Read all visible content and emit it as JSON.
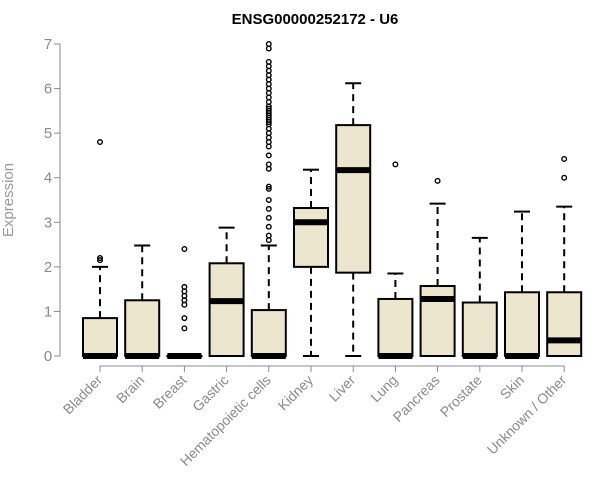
{
  "chart_data": {
    "type": "boxplot",
    "title": "ENSG00000252172 - U6",
    "ylabel": "Expression",
    "xlabel": "",
    "ylim": [
      0,
      7
    ],
    "yticks": [
      0,
      1,
      2,
      3,
      4,
      5,
      6,
      7
    ],
    "box_fill": "#ede6cf",
    "box_stroke": "#000000",
    "axis_color": "#8a8a8a",
    "categories": [
      "Bladder",
      "Brain",
      "Breast",
      "Gastric",
      "Hematopoietic cells",
      "Kidney",
      "Liver",
      "Lung",
      "Pancreas",
      "Prostate",
      "Skin",
      "Unknown / Other"
    ],
    "boxes": [
      {
        "category": "Bladder",
        "whisker_low": 0,
        "q1": 0,
        "median": 0,
        "q3": 0.85,
        "whisker_high": 2.0,
        "outliers": [
          4.8,
          2.2,
          2.15
        ]
      },
      {
        "category": "Brain",
        "whisker_low": 0,
        "q1": 0,
        "median": 0,
        "q3": 1.25,
        "whisker_high": 2.48,
        "outliers": []
      },
      {
        "category": "Breast",
        "whisker_low": 0,
        "q1": 0,
        "median": 0,
        "q3": 0,
        "whisker_high": 0,
        "outliers": [
          2.4,
          1.55,
          1.45,
          1.35,
          1.25,
          1.15,
          0.85,
          0.62
        ]
      },
      {
        "category": "Gastric",
        "whisker_low": 0,
        "q1": 0,
        "median": 1.23,
        "q3": 2.08,
        "whisker_high": 2.88,
        "outliers": []
      },
      {
        "category": "Hematopoietic cells",
        "whisker_low": 0,
        "q1": 0,
        "median": 0,
        "q3": 1.03,
        "whisker_high": 2.48,
        "outliers": [
          7.0,
          6.9,
          6.6,
          6.5,
          6.4,
          6.3,
          6.2,
          6.1,
          6.0,
          5.9,
          5.8,
          5.7,
          5.6,
          5.55,
          5.5,
          5.45,
          5.4,
          5.35,
          5.3,
          5.25,
          5.2,
          5.1,
          5.0,
          4.9,
          4.8,
          4.7,
          4.5,
          4.3,
          4.2,
          3.8,
          3.75,
          3.5,
          3.3,
          3.1,
          2.9,
          2.7,
          2.6
        ]
      },
      {
        "category": "Kidney",
        "whisker_low": 0,
        "q1": 2.0,
        "median": 3.0,
        "q3": 3.32,
        "whisker_high": 4.18,
        "outliers": []
      },
      {
        "category": "Liver",
        "whisker_low": 0,
        "q1": 1.87,
        "median": 4.17,
        "q3": 5.18,
        "whisker_high": 6.12,
        "outliers": []
      },
      {
        "category": "Lung",
        "whisker_low": 0,
        "q1": 0,
        "median": 0,
        "q3": 1.28,
        "whisker_high": 1.85,
        "outliers": [
          4.3
        ]
      },
      {
        "category": "Pancreas",
        "whisker_low": 0,
        "q1": 0,
        "median": 1.28,
        "q3": 1.57,
        "whisker_high": 3.42,
        "outliers": [
          3.93
        ]
      },
      {
        "category": "Prostate",
        "whisker_low": 0,
        "q1": 0,
        "median": 0,
        "q3": 1.2,
        "whisker_high": 2.65,
        "outliers": []
      },
      {
        "category": "Skin",
        "whisker_low": 0,
        "q1": 0,
        "median": 0,
        "q3": 1.43,
        "whisker_high": 3.24,
        "outliers": []
      },
      {
        "category": "Unknown / Other",
        "whisker_low": 0,
        "q1": 0,
        "median": 0.35,
        "q3": 1.43,
        "whisker_high": 3.35,
        "outliers": [
          4.42,
          4.0
        ]
      }
    ]
  }
}
